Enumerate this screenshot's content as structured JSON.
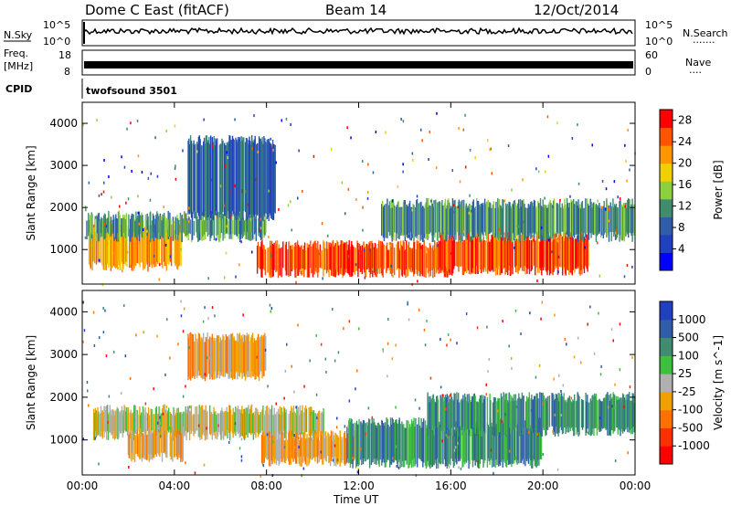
{
  "header": {
    "station": "Dome C East (fitACF)",
    "beam": "Beam 14",
    "date": "12/Oct/2014"
  },
  "panels": {
    "nsky_label": "N.Sky",
    "nsearch_label": "N.Search",
    "nsearch_dots": "·······",
    "nsky_tick_top": "10^5",
    "nsky_tick_bottom": "10^0",
    "nsearch_tick_top": "10^5",
    "nsearch_tick_bottom": "10^0",
    "freq_label": "Freq.",
    "freq_unit": "[MHz]",
    "freq_tick_top": "18",
    "freq_tick_bottom": "8",
    "nave_label": "Nave",
    "nave_dots": "····",
    "nave_tick_top": "60",
    "nave_tick_bottom": "0",
    "cpid_label": "CPID",
    "cpid_value": "twofsound 3501"
  },
  "chart_data": [
    {
      "type": "heatmap",
      "title": "",
      "xlabel": "",
      "ylabel": "Slant Range [km]",
      "x_ticks": [
        "00:00",
        "04:00",
        "08:00",
        "12:00",
        "16:00",
        "20:00",
        "00:00"
      ],
      "xlim": [
        0,
        24
      ],
      "ylim": [
        180,
        4500
      ],
      "y_ticks": [
        1000,
        2000,
        3000,
        4000
      ],
      "colorbar": {
        "label": "Power [dB]",
        "ticks": [
          4,
          8,
          12,
          16,
          20,
          24,
          28
        ],
        "range": [
          0,
          30
        ],
        "colors": [
          "#0000ff",
          "#2040c0",
          "#2f5da8",
          "#3f8c6f",
          "#8ccf3f",
          "#f0d000",
          "#ff9600",
          "#ff5500",
          "#ff0000"
        ]
      },
      "bands": [
        {
          "name": "low_range_echo",
          "t_start": 0.3,
          "t_end": 4.3,
          "r_low": 600,
          "r_high": 1500,
          "level": 22
        },
        {
          "name": "mid_range_band",
          "t_start": 0.2,
          "t_end": 8.0,
          "r_low": 1300,
          "r_high": 1800,
          "level": 11
        },
        {
          "name": "sporadic_upper",
          "t_start": 4.6,
          "t_end": 8.4,
          "r_low": 1800,
          "r_high": 3600,
          "level": 8
        },
        {
          "name": "main_echo_day",
          "t_start": 7.6,
          "t_end": 16.0,
          "r_low": 450,
          "r_high": 1100,
          "level": 27
        },
        {
          "name": "main_echo_eve",
          "t_start": 15.5,
          "t_end": 22.0,
          "r_low": 500,
          "r_high": 1300,
          "level": 26
        },
        {
          "name": "upper_band_late",
          "t_start": 13.0,
          "t_end": 24.0,
          "r_low": 1300,
          "r_high": 2100,
          "level": 12
        }
      ]
    },
    {
      "type": "heatmap",
      "title": "",
      "xlabel": "Time UT",
      "ylabel": "Slant Range [km]",
      "x_ticks": [
        "00:00",
        "04:00",
        "08:00",
        "12:00",
        "16:00",
        "20:00",
        "00:00"
      ],
      "xlim": [
        0,
        24
      ],
      "ylim": [
        180,
        4500
      ],
      "y_ticks": [
        1000,
        2000,
        3000,
        4000
      ],
      "colorbar": {
        "label": "Velocity [m s^-1]",
        "ticks": [
          "1000",
          "500",
          "100",
          "25",
          "-25",
          "-100",
          "-500",
          "-1000"
        ],
        "colors": [
          "#2040c0",
          "#2f5da8",
          "#3f8c6f",
          "#3fbf3f",
          "#b0b0b0",
          "#f0a000",
          "#ff7000",
          "#ff3000",
          "#ff0000"
        ]
      },
      "bands": [
        {
          "name": "gray_ground",
          "t_start": 0.5,
          "t_end": 10.5,
          "r_low": 1100,
          "r_high": 1700,
          "class": "-25..25"
        },
        {
          "name": "orange_low",
          "t_start": 2.0,
          "t_end": 4.4,
          "r_low": 600,
          "r_high": 1200,
          "class": "-100"
        },
        {
          "name": "orange_upper",
          "t_start": 4.6,
          "t_end": 8.0,
          "r_low": 2500,
          "r_high": 3400,
          "class": "-100"
        },
        {
          "name": "orange_mid",
          "t_start": 7.8,
          "t_end": 12.0,
          "r_low": 500,
          "r_high": 1100,
          "class": "-100"
        },
        {
          "name": "green_day",
          "t_start": 11.5,
          "t_end": 20.0,
          "r_low": 450,
          "r_high": 1400,
          "class": "100"
        },
        {
          "name": "green_late",
          "t_start": 15.0,
          "t_end": 24.0,
          "r_low": 1200,
          "r_high": 2000,
          "class": "100"
        }
      ]
    }
  ]
}
